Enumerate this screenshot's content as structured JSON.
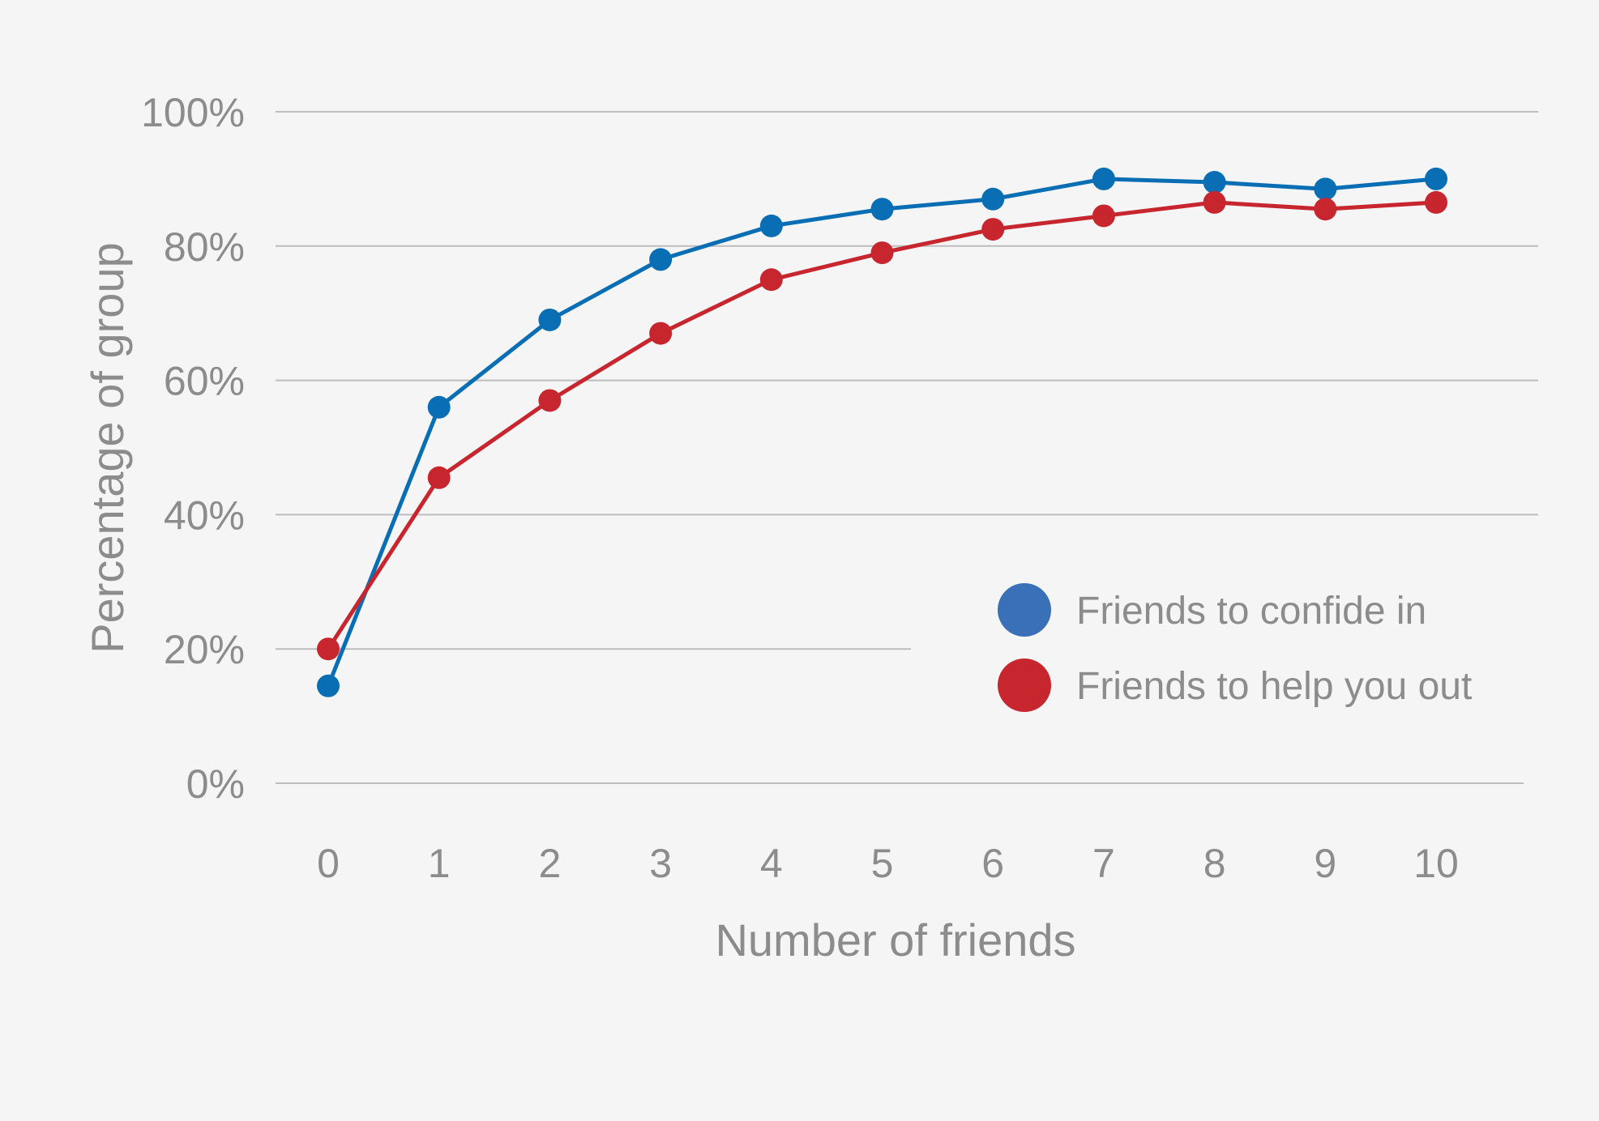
{
  "chart_data": {
    "type": "line",
    "title": "",
    "xlabel": "Number of friends",
    "ylabel": "Percentage of group",
    "x": [
      0,
      1,
      2,
      3,
      4,
      5,
      6,
      7,
      8,
      9,
      10
    ],
    "x_tick_labels": [
      "0",
      "1",
      "2",
      "3",
      "4",
      "5",
      "6",
      "7",
      "8",
      "9",
      "10"
    ],
    "ylim": [
      0,
      100
    ],
    "y_ticks": [
      0,
      20,
      40,
      60,
      80,
      100
    ],
    "y_tick_labels": [
      "0%",
      "20%",
      "40%",
      "60%",
      "80%",
      "100%"
    ],
    "grid": true,
    "legend_position": "right",
    "series": [
      {
        "name": "Friends to confide in",
        "color": "#0a6eb4",
        "marker_color": "#3a70b8",
        "values": [
          14.5,
          56,
          69,
          78,
          83,
          85.5,
          87,
          90,
          89.5,
          88.5,
          90
        ]
      },
      {
        "name": "Friends to help you out",
        "color": "#c8262e",
        "marker_color": "#c8262e",
        "values": [
          20,
          45.5,
          57,
          67,
          75,
          79,
          82.5,
          84.5,
          86.5,
          85.5,
          86.5
        ]
      }
    ]
  }
}
